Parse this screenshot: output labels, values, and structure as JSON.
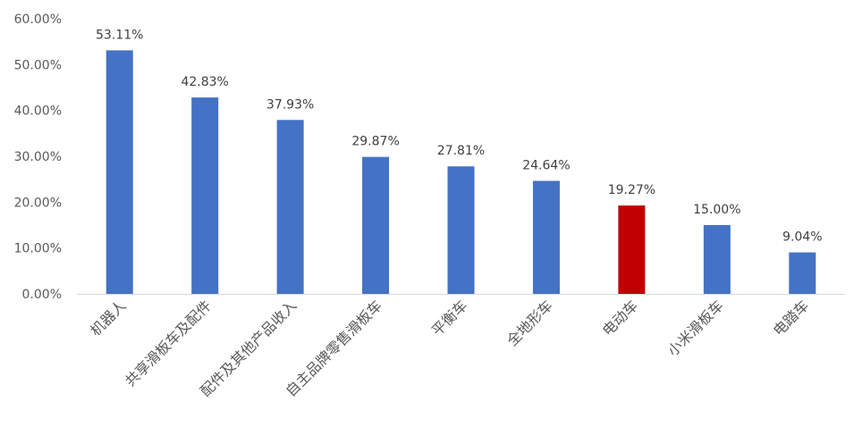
{
  "chart_data": {
    "type": "bar",
    "categories": [
      "机器人",
      "共享滑板车及配件",
      "配件及其他产品收入",
      "自主品牌零售滑板车",
      "平衡车",
      "全地形车",
      "电动车",
      "小米滑板车",
      "电踏车"
    ],
    "values": [
      53.11,
      42.83,
      37.93,
      29.87,
      27.81,
      24.64,
      19.27,
      15.0,
      9.04
    ],
    "data_labels": [
      "53.11%",
      "42.83%",
      "37.93%",
      "29.87%",
      "27.81%",
      "24.64%",
      "19.27%",
      "15.00%",
      "9.04%"
    ],
    "y_ticks": [
      "0.00%",
      "10.00%",
      "20.00%",
      "30.00%",
      "40.00%",
      "50.00%",
      "60.00%"
    ],
    "ylim": [
      0,
      60
    ],
    "grid": false,
    "bar_color": "#4472C4",
    "highlight_color": "#C00000",
    "highlight_index": 6,
    "axis_color": "#D9D9D9"
  }
}
